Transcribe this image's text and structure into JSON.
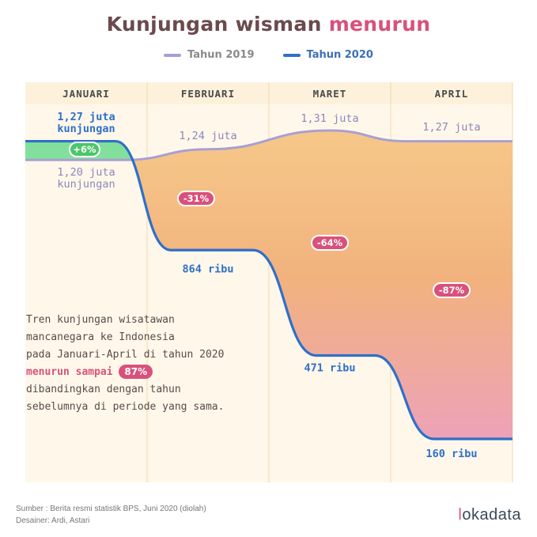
{
  "title": {
    "part1": "Kunjungan wisman",
    "highlight": "menurun"
  },
  "legend": [
    {
      "name": "Tahun 2019",
      "color": "#a99fd3"
    },
    {
      "name": "Tahun 2020",
      "color": "#2f6fc9"
    }
  ],
  "chart_data": {
    "type": "line",
    "categories": [
      "JANUARI",
      "FEBRUARI",
      "MARET",
      "APRIL"
    ],
    "series": [
      {
        "name": "Tahun 2019",
        "values": [
          1200000,
          1240000,
          1310000,
          1270000
        ],
        "labels": [
          "1,20 juta kunjungan",
          "1,24 juta",
          "1,31 juta",
          "1,27 juta"
        ]
      },
      {
        "name": "Tahun 2020",
        "values": [
          1270000,
          864000,
          471000,
          160000
        ],
        "labels": [
          "1,27 juta kunjungan",
          "864 ribu",
          "471 ribu",
          "160 ribu"
        ]
      }
    ],
    "change_labels": [
      "+6%",
      "-31%",
      "-64%",
      "-87%"
    ],
    "colors": {
      "s2019": "#a99fd3",
      "s2020": "#2f6fc9",
      "positive": "#4cc66a",
      "negative": "#d9517a"
    }
  },
  "description": {
    "line1": "Tren kunjungan wisatawan",
    "line2": "mancanegara ke Indonesia",
    "line3": "pada Januari-April di tahun 2020",
    "accent": "menurun sampai",
    "badge": "87%",
    "line5": "dibandingkan dengan tahun",
    "line6": "sebelumnya di periode yang sama."
  },
  "footer": {
    "source": "Sumber : Berita resmi statistik BPS, Juni 2020 (diolah)",
    "designer": "Desainer: Ardi, Astari"
  },
  "logo": {
    "text": "lokadata"
  }
}
